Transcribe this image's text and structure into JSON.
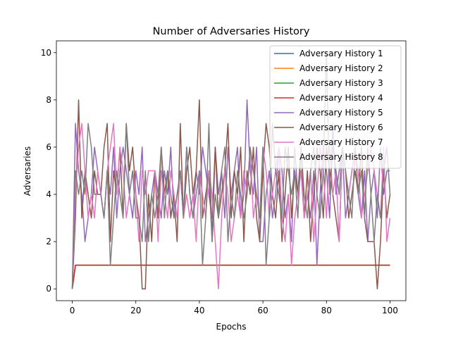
{
  "chart_data": {
    "type": "line",
    "title": "Number of Adversaries History",
    "xlabel": "Epochs",
    "ylabel": "Adversaries",
    "xlim": [
      -5,
      105
    ],
    "ylim": [
      -0.5,
      10.5
    ],
    "xticks": [
      0,
      20,
      40,
      60,
      80,
      100
    ],
    "yticks": [
      0,
      2,
      4,
      6,
      8,
      10
    ],
    "grid": false,
    "legend_position": "upper right",
    "series": [
      {
        "name": "Adversary History 1",
        "color": "#1f77b4",
        "values": [
          0,
          1,
          1,
          1,
          1,
          1,
          1,
          1,
          1,
          1,
          1,
          1,
          1,
          1,
          1,
          1,
          1,
          1,
          1,
          1,
          1,
          1,
          1,
          1,
          1,
          1,
          1,
          1,
          1,
          1,
          1,
          1,
          1,
          1,
          1,
          1,
          1,
          1,
          1,
          1,
          1,
          1,
          1,
          1,
          1,
          1,
          1,
          1,
          1,
          1,
          1,
          1,
          1,
          1,
          1,
          1,
          1,
          1,
          1,
          1,
          1,
          1,
          1,
          1,
          1,
          1,
          1,
          1,
          1,
          1,
          1,
          1,
          1,
          1,
          1,
          1,
          1,
          1,
          1,
          1,
          1,
          1,
          1,
          1,
          1,
          1,
          1,
          1,
          1,
          1,
          1,
          1,
          1,
          1,
          1,
          1,
          1,
          1,
          1,
          1,
          1
        ]
      },
      {
        "name": "Adversary History 2",
        "color": "#ff7f0e",
        "values": [
          0,
          1,
          1,
          1,
          1,
          1,
          1,
          1,
          1,
          1,
          1,
          1,
          1,
          1,
          1,
          1,
          1,
          1,
          1,
          1,
          1,
          1,
          1,
          1,
          1,
          1,
          1,
          1,
          1,
          1,
          1,
          1,
          1,
          1,
          1,
          1,
          1,
          1,
          1,
          1,
          1,
          1,
          1,
          1,
          1,
          1,
          1,
          1,
          1,
          1,
          1,
          1,
          1,
          1,
          1,
          1,
          1,
          1,
          1,
          1,
          1,
          1,
          1,
          1,
          1,
          1,
          1,
          1,
          1,
          1,
          1,
          1,
          1,
          1,
          1,
          1,
          1,
          1,
          1,
          1,
          1,
          1,
          1,
          1,
          1,
          1,
          1,
          1,
          1,
          1,
          1,
          1,
          1,
          1,
          1,
          1,
          1,
          1,
          1,
          1,
          1
        ]
      },
      {
        "name": "Adversary History 3",
        "color": "#2ca02c",
        "values": [
          0,
          1,
          1,
          1,
          1,
          1,
          1,
          1,
          1,
          1,
          1,
          1,
          1,
          1,
          1,
          1,
          1,
          1,
          1,
          1,
          1,
          1,
          1,
          1,
          1,
          1,
          1,
          1,
          1,
          1,
          1,
          1,
          1,
          1,
          1,
          1,
          1,
          1,
          1,
          1,
          1,
          1,
          1,
          1,
          1,
          1,
          1,
          1,
          1,
          1,
          1,
          1,
          1,
          1,
          1,
          1,
          1,
          1,
          1,
          1,
          1,
          1,
          1,
          1,
          1,
          1,
          1,
          1,
          1,
          1,
          1,
          1,
          1,
          1,
          1,
          1,
          1,
          1,
          1,
          1,
          1,
          1,
          1,
          1,
          1,
          1,
          1,
          1,
          1,
          1,
          1,
          1,
          1,
          1,
          1,
          1,
          1,
          1,
          1,
          1,
          1
        ]
      },
      {
        "name": "Adversary History 4",
        "color": "#d62728",
        "values": [
          0,
          1,
          1,
          1,
          1,
          1,
          1,
          1,
          1,
          1,
          1,
          1,
          1,
          1,
          1,
          1,
          1,
          1,
          1,
          1,
          1,
          1,
          1,
          1,
          1,
          1,
          1,
          1,
          1,
          1,
          1,
          1,
          1,
          1,
          1,
          1,
          1,
          1,
          1,
          1,
          1,
          1,
          1,
          1,
          1,
          1,
          1,
          1,
          1,
          1,
          1,
          1,
          1,
          1,
          1,
          1,
          1,
          1,
          1,
          1,
          1,
          1,
          1,
          1,
          1,
          1,
          1,
          1,
          1,
          1,
          1,
          1,
          1,
          1,
          1,
          1,
          1,
          1,
          1,
          1,
          1,
          1,
          1,
          1,
          1,
          1,
          1,
          1,
          1,
          1,
          1,
          1,
          1,
          1,
          1,
          1,
          1,
          1,
          1,
          1,
          1
        ]
      },
      {
        "name": "Adversary History 5",
        "color": "#9467bd",
        "values": [
          0,
          7,
          5,
          4,
          2,
          3,
          4,
          6,
          5,
          4,
          3,
          5,
          4,
          6,
          3,
          5,
          6,
          5,
          4,
          3,
          5,
          4,
          6,
          2,
          3,
          4,
          5,
          4,
          3,
          5,
          4,
          6,
          3,
          4,
          5,
          3,
          6,
          4,
          3,
          5,
          4,
          6,
          5,
          4,
          3,
          6,
          4,
          5,
          3,
          6,
          4,
          5,
          6,
          3,
          4,
          8,
          5,
          4,
          6,
          2,
          2,
          4,
          5,
          3,
          4,
          6,
          5,
          3,
          4,
          2,
          6,
          4,
          5,
          3,
          4,
          3,
          5,
          1,
          4,
          6,
          5,
          3,
          7,
          4,
          5,
          6,
          3,
          4,
          5,
          6,
          4,
          3,
          5,
          2,
          4,
          5,
          3,
          6,
          4,
          5,
          5
        ]
      },
      {
        "name": "Adversary History 6",
        "color": "#8c564b",
        "values": [
          0,
          3,
          8,
          3,
          5,
          4,
          3,
          5,
          4,
          4,
          6,
          7,
          2,
          5,
          4,
          6,
          3,
          7,
          5,
          6,
          4,
          3,
          0,
          0,
          4,
          2,
          5,
          3,
          6,
          4,
          5,
          3,
          4,
          2,
          7,
          3,
          5,
          6,
          4,
          5,
          8,
          3,
          4,
          5,
          2,
          6,
          3,
          4,
          5,
          7,
          3,
          5,
          4,
          6,
          2,
          5,
          4,
          6,
          3,
          2,
          5,
          7,
          6,
          4,
          3,
          5,
          2,
          4,
          6,
          3,
          5,
          4,
          6,
          3,
          5,
          2,
          4,
          6,
          5,
          3,
          6,
          5,
          4,
          3,
          2,
          6,
          5,
          3,
          4,
          5,
          4,
          6,
          3,
          2,
          2,
          2,
          0,
          2,
          5,
          3,
          4
        ]
      },
      {
        "name": "Adversary History 7",
        "color": "#e377c2",
        "values": [
          0,
          4,
          6,
          7,
          5,
          3,
          4,
          3,
          5,
          4,
          3,
          5,
          6,
          7,
          4,
          6,
          5,
          3,
          4,
          5,
          4,
          2,
          5,
          4,
          5,
          5,
          5,
          2,
          5,
          4,
          3,
          5,
          4,
          3,
          5,
          3,
          4,
          3,
          4,
          2,
          5,
          4,
          3,
          5,
          4,
          2,
          0,
          3,
          5,
          4,
          2,
          3,
          4,
          3,
          5,
          4,
          6,
          3,
          4,
          3,
          6,
          5,
          3,
          4,
          5,
          6,
          3,
          2,
          4,
          1,
          3,
          4,
          5,
          3,
          4,
          5,
          2,
          4,
          6,
          5,
          3,
          6,
          4,
          5,
          2,
          6,
          5,
          4,
          5,
          6,
          5,
          3,
          4,
          5,
          6,
          5,
          4,
          3,
          6,
          2,
          3
        ]
      },
      {
        "name": "Adversary History 8",
        "color": "#7f7f7f",
        "values": [
          0,
          5,
          4,
          5,
          4,
          7,
          6,
          4,
          4,
          4,
          3,
          5,
          1,
          3,
          5,
          4,
          3,
          7,
          4,
          5,
          3,
          3,
          2,
          5,
          2,
          4,
          3,
          4,
          6,
          3,
          5,
          4,
          3,
          4,
          5,
          3,
          6,
          4,
          3,
          4,
          5,
          1,
          3,
          7,
          2,
          4,
          3,
          5,
          6,
          2,
          4,
          3,
          5,
          4,
          3,
          4,
          6,
          5,
          4,
          3,
          6,
          1,
          3,
          7,
          5,
          4,
          3,
          6,
          5,
          4,
          5,
          3,
          6,
          4,
          3,
          5,
          6,
          4,
          3,
          5,
          10,
          4,
          6,
          5,
          4,
          6,
          5,
          4,
          3,
          6,
          4,
          5,
          3,
          6,
          4,
          2,
          4,
          3,
          5,
          6,
          4
        ]
      }
    ]
  }
}
